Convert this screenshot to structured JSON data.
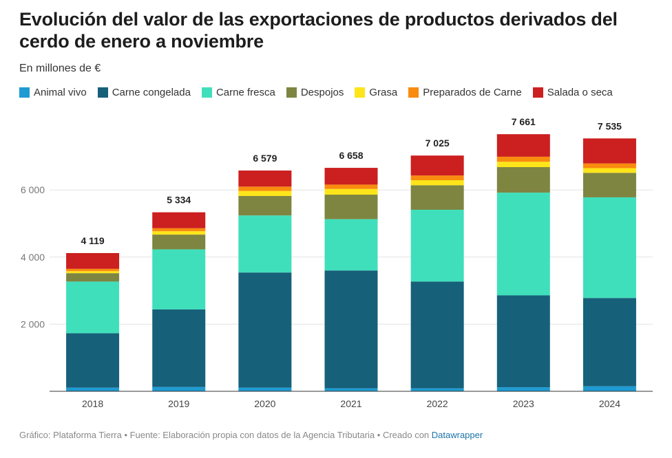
{
  "title": "Evolución del valor de las exportaciones de productos derivados del cerdo de enero a noviembre",
  "subtitle": "En millones de €",
  "footer": {
    "text": "Gráfico: Plataforma Tierra • Fuente: Elaboración propia con datos de la Agencia Tributaria • Creado con ",
    "brand": "Datawrapper"
  },
  "chart_data": {
    "type": "bar",
    "stacked": true,
    "categories": [
      "2018",
      "2019",
      "2020",
      "2021",
      "2022",
      "2023",
      "2024"
    ],
    "totals": [
      4119,
      5334,
      6579,
      6658,
      7025,
      7661,
      7535
    ],
    "total_labels": [
      "4 119",
      "5 334",
      "6 579",
      "6 658",
      "7 025",
      "7 661",
      "7 535"
    ],
    "series": [
      {
        "name": "Animal vivo",
        "color": "#1e9bd2",
        "values": [
          110,
          130,
          110,
          90,
          90,
          120,
          150
        ]
      },
      {
        "name": "Carne congelada",
        "color": "#17607a",
        "values": [
          1620,
          2310,
          3430,
          3510,
          3180,
          2740,
          2630
        ]
      },
      {
        "name": "Carne fresca",
        "color": "#40dfbb",
        "values": [
          1540,
          1790,
          1700,
          1530,
          2140,
          3060,
          3000
        ]
      },
      {
        "name": "Despojos",
        "color": "#7e8541",
        "values": [
          250,
          440,
          580,
          730,
          730,
          760,
          730
        ]
      },
      {
        "name": "Grasa",
        "color": "#fde51a",
        "values": [
          60,
          100,
          150,
          170,
          150,
          160,
          140
        ]
      },
      {
        "name": "Preparados de Carne",
        "color": "#f98b0e",
        "values": [
          70,
          90,
          130,
          130,
          140,
          150,
          140
        ]
      },
      {
        "name": "Salada o seca",
        "color": "#cc1f1f",
        "values": [
          469,
          474,
          479,
          498,
          595,
          671,
          745
        ]
      }
    ],
    "yticks": [
      2000,
      4000,
      6000
    ],
    "ytick_labels": [
      "2 000",
      "4 000",
      "6 000"
    ],
    "ylim": [
      0,
      8000
    ],
    "grid": true,
    "legend": "top-left",
    "xlabel": "",
    "ylabel": ""
  }
}
